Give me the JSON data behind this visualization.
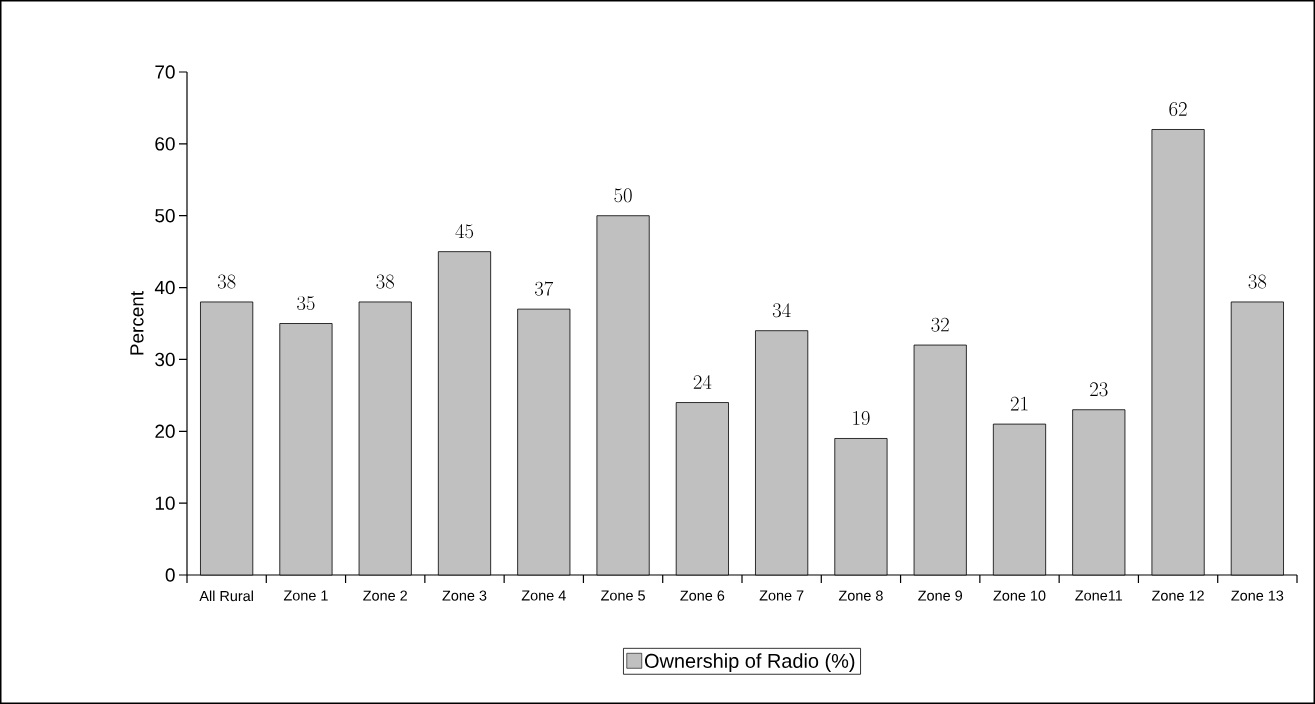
{
  "chart_data": {
    "type": "bar",
    "categories": [
      "All Rural",
      "Zone 1",
      "Zone 2",
      "Zone 3",
      "Zone 4",
      "Zone 5",
      "Zone 6",
      "Zone 7",
      "Zone 8",
      "Zone 9",
      "Zone 10",
      "Zone11",
      "Zone 12",
      "Zone 13"
    ],
    "series": [
      {
        "name": "Ownership of Radio (%)",
        "color": "#c0c0c0",
        "values": [
          38,
          35,
          38,
          45,
          37,
          50,
          24,
          34,
          19,
          32,
          21,
          23,
          62,
          38
        ]
      }
    ],
    "ylabel": "Percent",
    "ylim": [
      0,
      70
    ],
    "yticks": [
      0,
      10,
      20,
      30,
      40,
      50,
      60,
      70
    ],
    "data_labels": true,
    "legend": "bottom",
    "grid": false
  }
}
